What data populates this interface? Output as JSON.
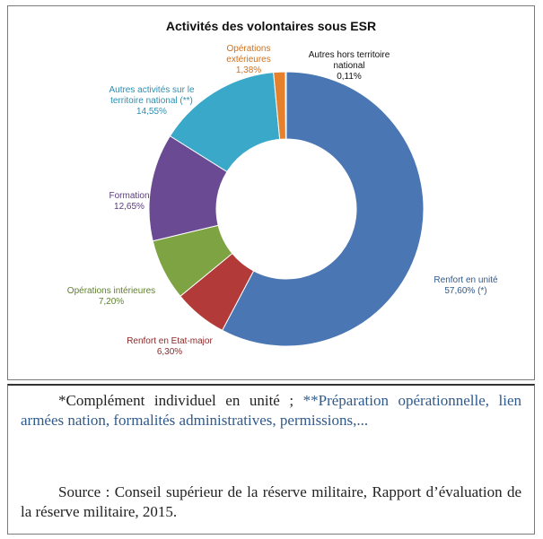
{
  "chart_data": {
    "type": "pie",
    "title": "Activités des volontaires sous ESR",
    "categories": [
      "Renfort en unité",
      "Renfort en Etat-major",
      "Opérations intérieures",
      "Formation",
      "Autres activités sur le territoire national (**)",
      "Opérations extérieures",
      "Autres hors territoire national"
    ],
    "values": [
      57.6,
      6.3,
      7.2,
      12.65,
      14.55,
      1.38,
      0.11
    ],
    "slices": [
      {
        "label_lines": [
          "Renfort  en unité"
        ],
        "value_text": "57,60% (*)",
        "color": "#4a76b3"
      },
      {
        "label_lines": [
          "Renfort en Etat-major"
        ],
        "value_text": "6,30%",
        "color": "#b23b3a"
      },
      {
        "label_lines": [
          "Opérations intérieures"
        ],
        "value_text": "7,20%",
        "color": "#7ea343"
      },
      {
        "label_lines": [
          "Formation"
        ],
        "value_text": "12,65%",
        "color": "#6a4a93"
      },
      {
        "label_lines": [
          "Autres activités sur le",
          "territoire national (**)"
        ],
        "value_text": "14,55%",
        "color": "#3aa8c9"
      },
      {
        "label_lines": [
          "Opérations",
          "extérieures"
        ],
        "value_text": "1,38%",
        "color": "#e5812c"
      },
      {
        "label_lines": [
          "Autres hors territoire",
          "national"
        ],
        "value_text": "0,11%",
        "color": "#1f3f6a"
      }
    ]
  },
  "notes": {
    "footnote_part1": "*Complément individuel en unité ; ",
    "footnote_part2": "**Préparation opérationnelle, lien armées nation, formalités administratives, permissions,...",
    "source": "Source : Conseil supérieur de la réserve militaire, Rapport d’évaluation de la réserve militaire, 2015."
  }
}
